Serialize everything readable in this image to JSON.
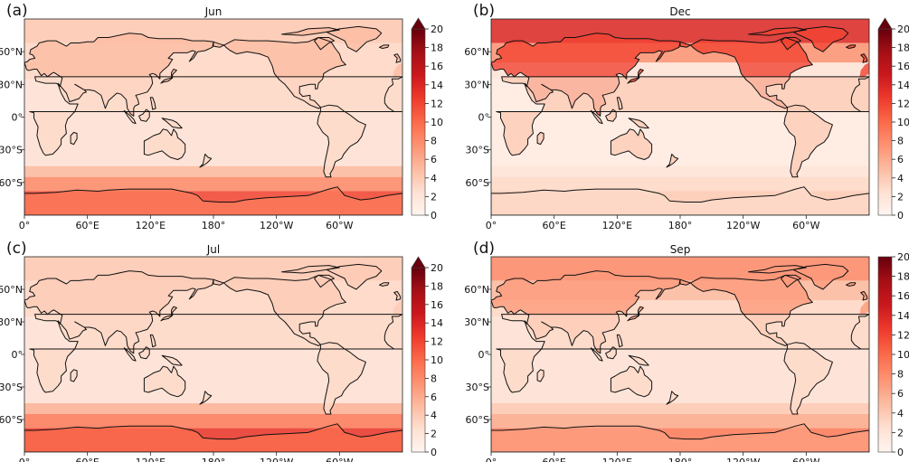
{
  "figure": {
    "colorbar_ticks": [
      "0",
      "2",
      "4",
      "6",
      "8",
      "10",
      "12",
      "14",
      "16",
      "18",
      "20"
    ],
    "lat_ticks": [
      "60°N",
      "30°N",
      "0°",
      "30°S",
      "60°S"
    ],
    "lon_ticks": [
      "0°",
      "60°E",
      "120°E",
      "180°",
      "120°W",
      "60°W"
    ],
    "colormap": [
      "#fff5f0",
      "#fee0d2",
      "#fcbba1",
      "#fc9272",
      "#fb6a4a",
      "#ef3b2c",
      "#cb181d",
      "#a50f15",
      "#67000d"
    ],
    "coastline_color": "#111111"
  },
  "panels": [
    {
      "letter": "(a)",
      "title": "Jun",
      "colorbar_extend": "max",
      "intensity": {
        "base": 2,
        "arctic": 4,
        "northern_land": 5,
        "tropics_land": 3,
        "southern_ocean": 8,
        "antarctic_coast": 12
      }
    },
    {
      "letter": "(b)",
      "title": "Dec",
      "colorbar_extend": "max",
      "intensity": {
        "base": 1,
        "arctic": 14,
        "northern_land": 12,
        "tropics_land": 4,
        "southern_ocean": 3,
        "antarctic_coast": 4
      }
    },
    {
      "letter": "(c)",
      "title": "Jul",
      "colorbar_extend": "max",
      "intensity": {
        "base": 2,
        "arctic": 4,
        "northern_land": 4,
        "tropics_land": 3,
        "southern_ocean": 9,
        "antarctic_coast": 13
      }
    },
    {
      "letter": "(d)",
      "title": "Sep",
      "colorbar_extend": "none",
      "intensity": {
        "base": 2,
        "arctic": 8,
        "northern_land": 7,
        "tropics_land": 3,
        "southern_ocean": 6,
        "antarctic_coast": 9
      }
    }
  ]
}
